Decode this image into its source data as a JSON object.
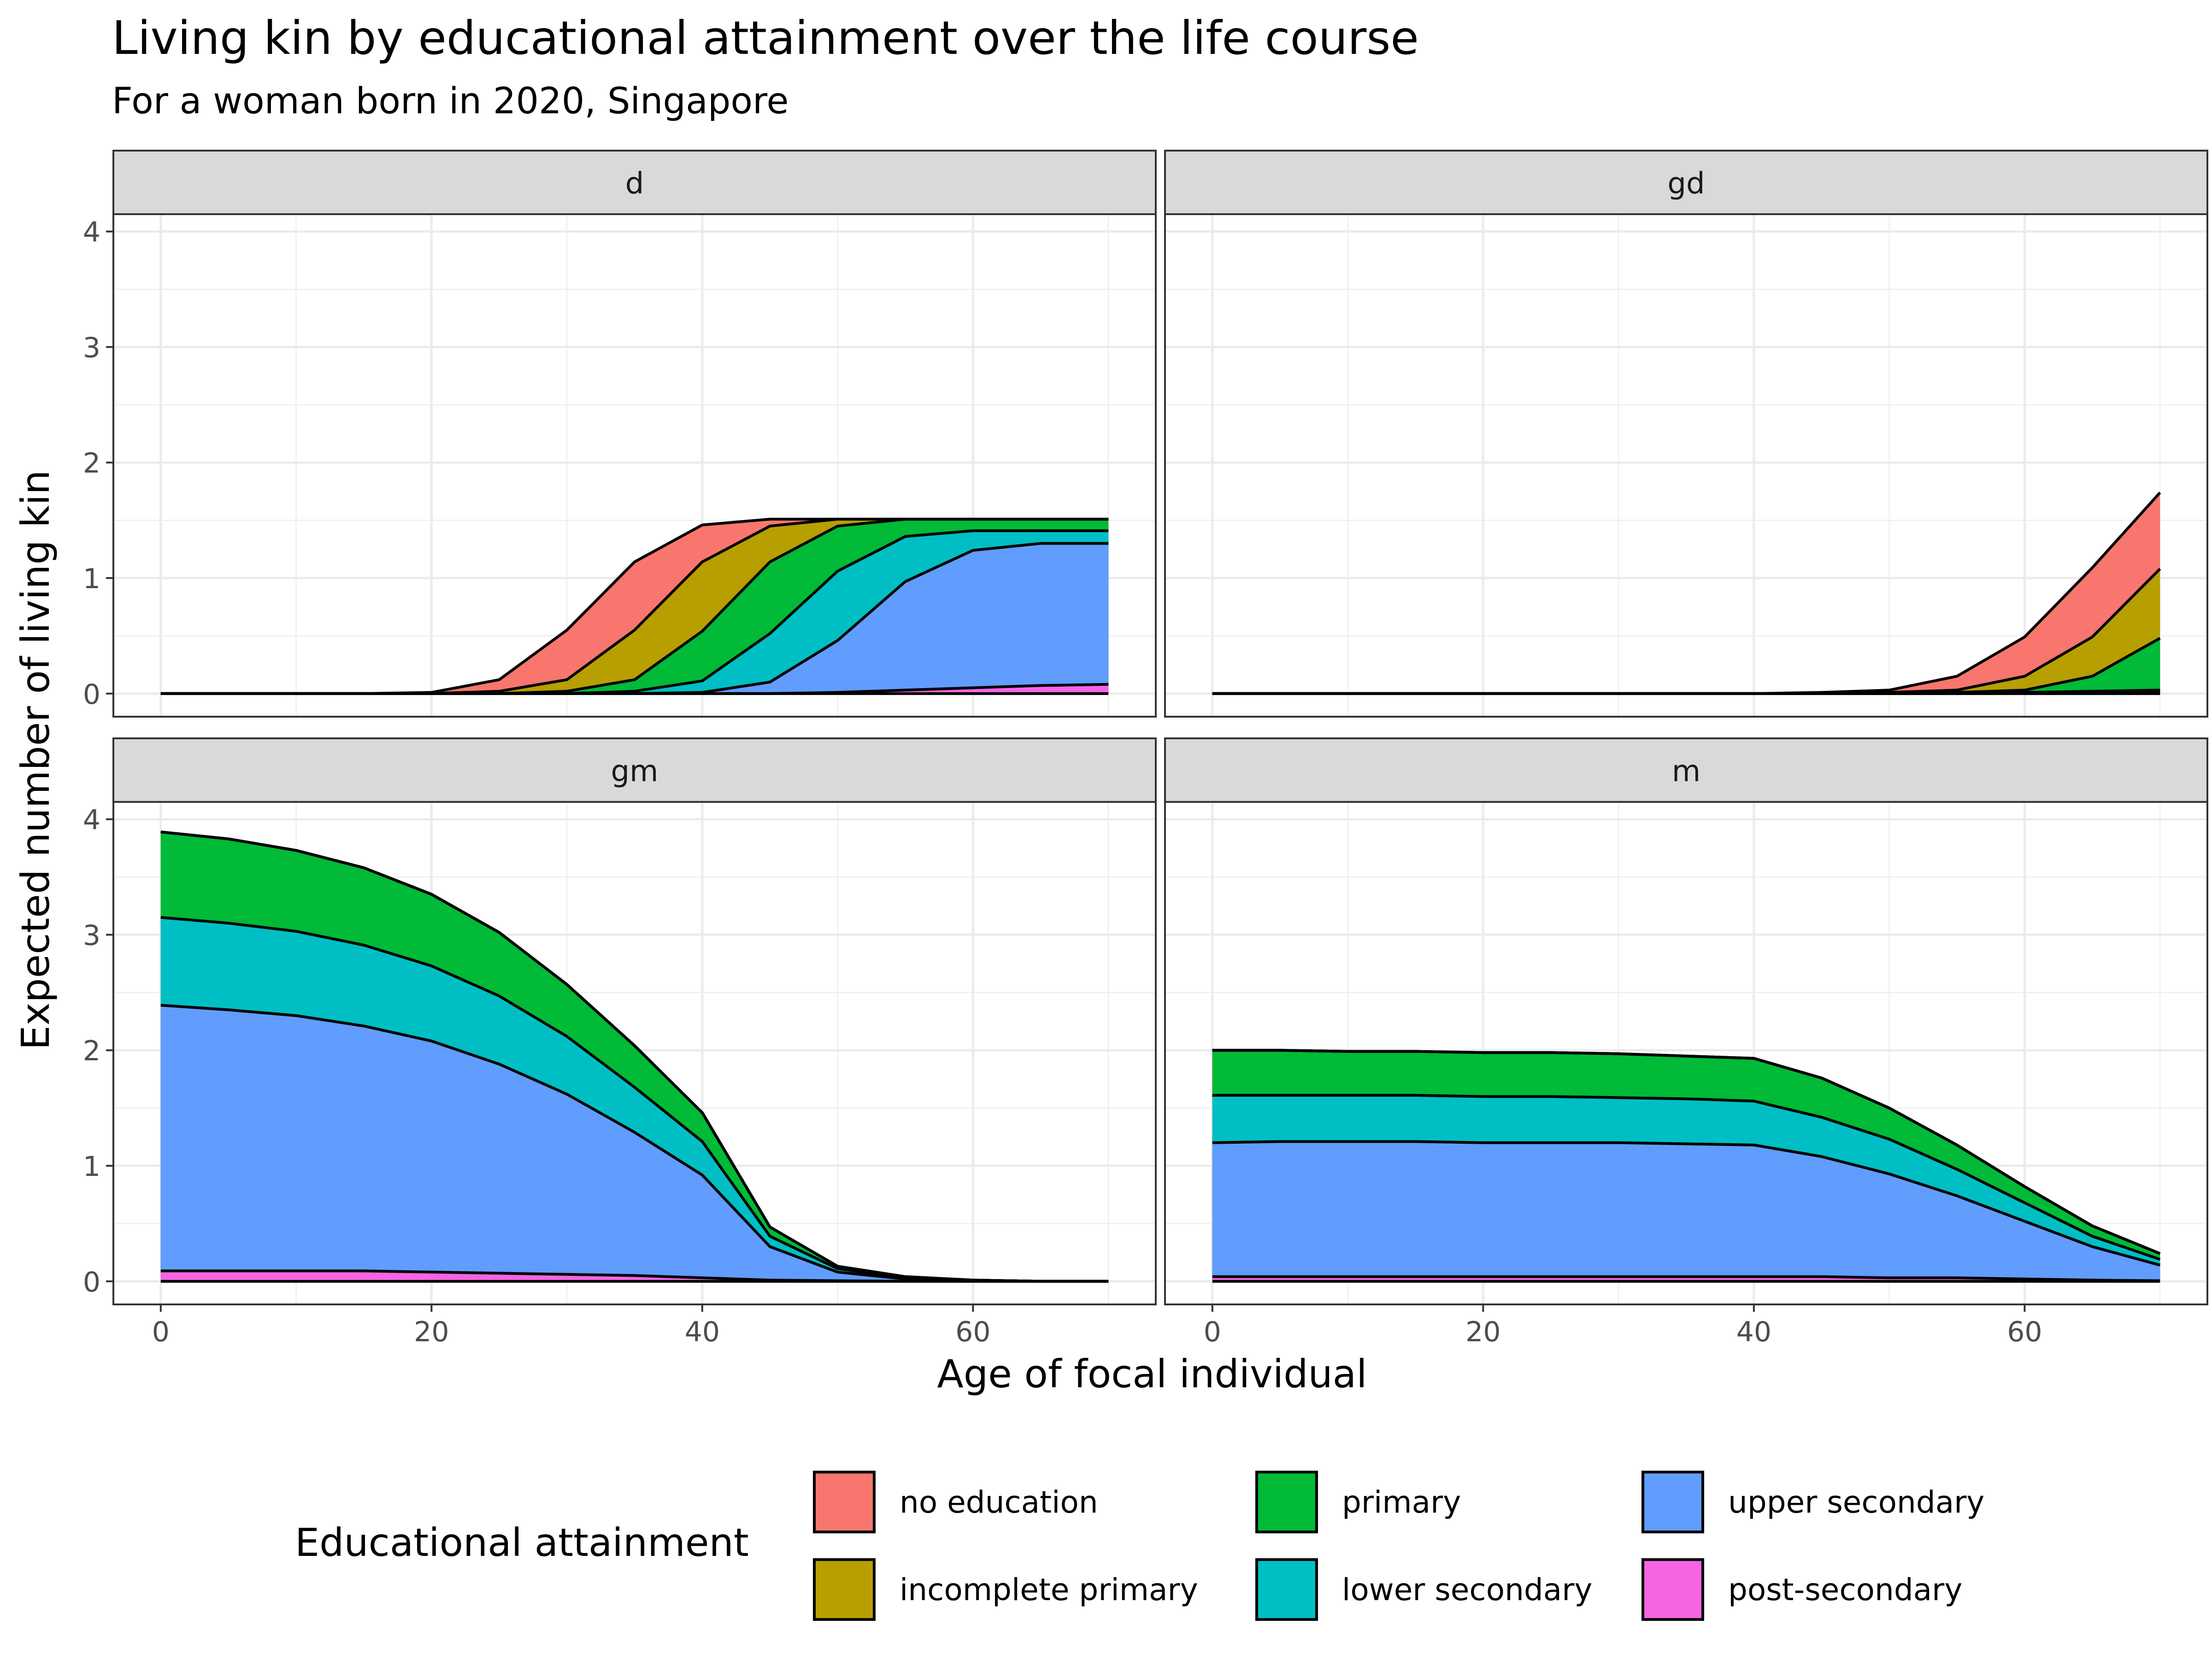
{
  "chart_data": {
    "type": "area",
    "title": "Living kin by educational attainment over the life course",
    "subtitle": "For a woman born in 2020, Singapore",
    "xlabel": "Age of focal individual",
    "ylabel": "Expected number of living kin",
    "x_ticks": [
      0,
      20,
      40,
      60
    ],
    "y_ticks": [
      0,
      1,
      2,
      3,
      4
    ],
    "xlim": [
      -3.5,
      73.5
    ],
    "ylim": [
      -0.2,
      4.15
    ],
    "grid": true,
    "legend": {
      "title": "Educational attainment",
      "position": "bottom",
      "entries": [
        {
          "label": "no education",
          "color": "#F8766D"
        },
        {
          "label": "incomplete primary",
          "color": "#B79F00"
        },
        {
          "label": "primary",
          "color": "#00BA38"
        },
        {
          "label": "lower secondary",
          "color": "#00BFC4"
        },
        {
          "label": "upper secondary",
          "color": "#619CFF"
        },
        {
          "label": "post-secondary",
          "color": "#F564E3"
        }
      ]
    },
    "x": [
      0,
      5,
      10,
      15,
      20,
      25,
      30,
      35,
      40,
      45,
      50,
      55,
      60,
      65,
      70
    ],
    "stack_note": "cumulative",
    "panels": [
      {
        "label": "d",
        "series": [
          {
            "name": "post-secondary",
            "values": [
              0,
              0,
              0,
              0,
              0,
              0,
              0,
              0,
              0,
              0,
              0.01,
              0.03,
              0.05,
              0.07,
              0.08
            ]
          },
          {
            "name": "upper secondary",
            "values": [
              0,
              0,
              0,
              0,
              0,
              0,
              0,
              0,
              0.01,
              0.1,
              0.46,
              0.97,
              1.24,
              1.3,
              1.3
            ]
          },
          {
            "name": "lower secondary",
            "values": [
              0,
              0,
              0,
              0,
              0,
              0,
              0,
              0.02,
              0.11,
              0.52,
              1.06,
              1.36,
              1.41,
              1.41,
              1.41
            ]
          },
          {
            "name": "primary",
            "values": [
              0,
              0,
              0,
              0,
              0,
              0,
              0.02,
              0.12,
              0.54,
              1.14,
              1.45,
              1.51,
              1.51,
              1.51,
              1.51
            ]
          },
          {
            "name": "incomplete primary",
            "values": [
              0,
              0,
              0,
              0,
              0,
              0.02,
              0.12,
              0.55,
              1.14,
              1.45,
              1.51,
              1.51,
              1.51,
              1.51,
              1.51
            ]
          },
          {
            "name": "no education",
            "values": [
              0,
              0,
              0,
              0,
              0.01,
              0.12,
              0.55,
              1.14,
              1.46,
              1.51,
              1.51,
              1.51,
              1.51,
              1.51,
              1.51
            ]
          }
        ]
      },
      {
        "label": "gd",
        "series": [
          {
            "name": "post-secondary",
            "values": [
              0,
              0,
              0,
              0,
              0,
              0,
              0,
              0,
              0,
              0,
              0,
              0,
              0,
              0,
              0
            ]
          },
          {
            "name": "upper secondary",
            "values": [
              0,
              0,
              0,
              0,
              0,
              0,
              0,
              0,
              0,
              0,
              0,
              0,
              0.01,
              0.01,
              0.02
            ]
          },
          {
            "name": "lower secondary",
            "values": [
              0,
              0,
              0,
              0,
              0,
              0,
              0,
              0,
              0,
              0,
              0,
              0,
              0.01,
              0.02,
              0.03
            ]
          },
          {
            "name": "primary",
            "values": [
              0,
              0,
              0,
              0,
              0,
              0,
              0,
              0,
              0,
              0,
              0,
              0.01,
              0.03,
              0.15,
              0.48
            ]
          },
          {
            "name": "incomplete primary",
            "values": [
              0,
              0,
              0,
              0,
              0,
              0,
              0,
              0,
              0,
              0,
              0.01,
              0.03,
              0.15,
              0.49,
              1.08
            ]
          },
          {
            "name": "no education",
            "values": [
              0,
              0,
              0,
              0,
              0,
              0,
              0,
              0,
              0,
              0.01,
              0.03,
              0.15,
              0.49,
              1.09,
              1.74
            ]
          }
        ]
      },
      {
        "label": "gm",
        "series": [
          {
            "name": "post-secondary",
            "values": [
              0.09,
              0.09,
              0.09,
              0.09,
              0.08,
              0.07,
              0.06,
              0.05,
              0.03,
              0.01,
              0.005,
              0,
              0,
              0,
              0
            ]
          },
          {
            "name": "upper secondary",
            "values": [
              2.39,
              2.35,
              2.3,
              2.21,
              2.08,
              1.88,
              1.62,
              1.29,
              0.92,
              0.3,
              0.08,
              0.02,
              0.01,
              0,
              0
            ]
          },
          {
            "name": "lower secondary",
            "values": [
              3.15,
              3.1,
              3.03,
              2.91,
              2.73,
              2.47,
              2.12,
              1.68,
              1.21,
              0.39,
              0.11,
              0.03,
              0.01,
              0,
              0
            ]
          },
          {
            "name": "primary",
            "values": [
              3.89,
              3.83,
              3.73,
              3.58,
              3.35,
              3.02,
              2.57,
              2.04,
              1.46,
              0.47,
              0.13,
              0.04,
              0.01,
              0,
              0
            ]
          },
          {
            "name": "incomplete primary",
            "values": [
              3.89,
              3.83,
              3.73,
              3.58,
              3.35,
              3.02,
              2.57,
              2.04,
              1.46,
              0.47,
              0.13,
              0.04,
              0.01,
              0,
              0
            ]
          },
          {
            "name": "no education",
            "values": [
              3.89,
              3.83,
              3.73,
              3.58,
              3.35,
              3.02,
              2.57,
              2.04,
              1.46,
              0.47,
              0.13,
              0.04,
              0.01,
              0,
              0
            ]
          }
        ]
      },
      {
        "label": "m",
        "series": [
          {
            "name": "post-secondary",
            "values": [
              0.04,
              0.04,
              0.04,
              0.04,
              0.04,
              0.04,
              0.04,
              0.04,
              0.04,
              0.04,
              0.03,
              0.03,
              0.02,
              0.01,
              0.005
            ]
          },
          {
            "name": "upper secondary",
            "values": [
              1.2,
              1.21,
              1.21,
              1.21,
              1.2,
              1.2,
              1.2,
              1.19,
              1.18,
              1.08,
              0.93,
              0.74,
              0.52,
              0.3,
              0.14
            ]
          },
          {
            "name": "lower secondary",
            "values": [
              1.61,
              1.61,
              1.61,
              1.61,
              1.6,
              1.6,
              1.59,
              1.58,
              1.56,
              1.42,
              1.23,
              0.97,
              0.68,
              0.39,
              0.19
            ]
          },
          {
            "name": "primary",
            "values": [
              2.0,
              2.0,
              1.99,
              1.99,
              1.98,
              1.98,
              1.97,
              1.95,
              1.93,
              1.76,
              1.5,
              1.18,
              0.82,
              0.48,
              0.24
            ]
          },
          {
            "name": "incomplete primary",
            "values": [
              2.0,
              2.0,
              1.99,
              1.99,
              1.98,
              1.98,
              1.97,
              1.95,
              1.93,
              1.76,
              1.5,
              1.18,
              0.82,
              0.48,
              0.24
            ]
          },
          {
            "name": "no education",
            "values": [
              2.0,
              2.0,
              1.99,
              1.99,
              1.98,
              1.98,
              1.97,
              1.95,
              1.93,
              1.76,
              1.5,
              1.18,
              0.82,
              0.48,
              0.24
            ]
          }
        ]
      }
    ]
  }
}
